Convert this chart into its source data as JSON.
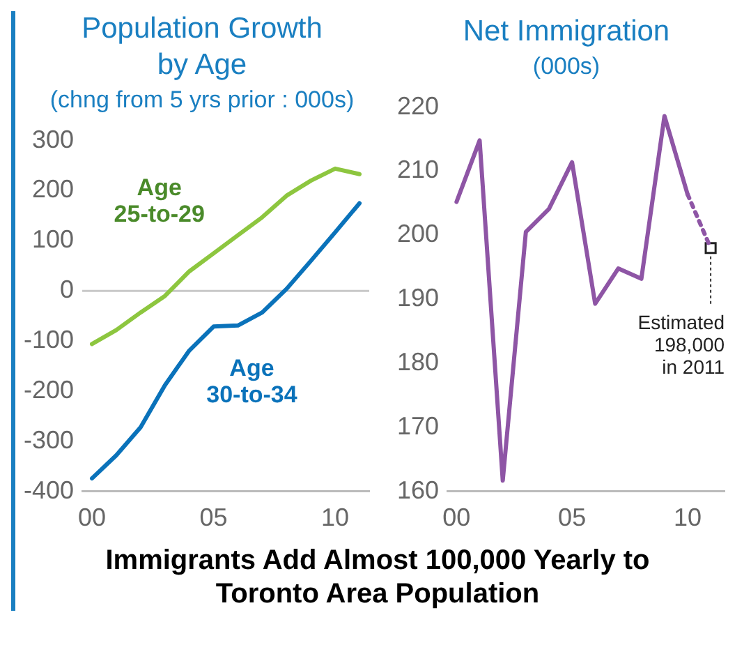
{
  "chart_data": [
    {
      "type": "line",
      "title": "Population Growth\nby Age",
      "subtitle": "(chng from 5 yrs prior : 000s)",
      "marker": "none",
      "x": [
        2000,
        2001,
        2002,
        2003,
        2004,
        2005,
        2006,
        2007,
        2008,
        2009,
        2010,
        2011
      ],
      "xlim": [
        1999.6,
        2011.4
      ],
      "xticks": [
        {
          "value": 2000,
          "label": "00"
        },
        {
          "value": 2005,
          "label": "05"
        },
        {
          "value": 2010,
          "label": "10"
        }
      ],
      "ylim": [
        -400,
        300
      ],
      "yticks": [
        -400,
        -300,
        -200,
        -100,
        0,
        100,
        200,
        300
      ],
      "ref_lines": [
        {
          "axis": "y",
          "value": 0,
          "color": "#c8c8c8"
        }
      ],
      "series": [
        {
          "name": "Age 25-to-29",
          "color": "#8dc63f",
          "values": [
            -106,
            -78,
            -43,
            -10,
            39,
            75,
            111,
            147,
            190,
            220,
            244,
            233
          ]
        },
        {
          "name": "Age 30-to-34",
          "color": "#0a72ba",
          "values": [
            -374,
            -328,
            -272,
            -188,
            -119,
            -71,
            -69,
            -43,
            4,
            60,
            117,
            175
          ]
        }
      ]
    },
    {
      "type": "line",
      "title": "Net Immigration",
      "subtitle": "(000s)",
      "marker": "none",
      "xlim": [
        1999.6,
        2011.6
      ],
      "xticks": [
        {
          "value": 2000,
          "label": "00"
        },
        {
          "value": 2005,
          "label": "05"
        },
        {
          "value": 2010,
          "label": "10"
        }
      ],
      "ylim": [
        160,
        220
      ],
      "yticks": [
        160,
        170,
        180,
        190,
        200,
        210,
        220
      ],
      "series": [
        {
          "color": "#8e55a5",
          "line_style": "solid",
          "x": [
            2000,
            2001,
            2002,
            2003,
            2004,
            2005,
            2006,
            2007,
            2008,
            2009,
            2010
          ],
          "values": [
            205.2,
            214.8,
            161.7,
            200.5,
            204.1,
            211.4,
            189.3,
            194.8,
            193.2,
            218.6,
            206.4
          ]
        },
        {
          "color": "#8e55a5",
          "line_style": "dotted",
          "x": [
            2010,
            2011
          ],
          "values": [
            206.4,
            198
          ]
        },
        {
          "type": "scatter",
          "marker": "square",
          "color": "#222222",
          "x": [
            2011
          ],
          "values": [
            198
          ]
        }
      ],
      "annotations": [
        {
          "text": "Estimated 198,000 in 2011",
          "x": 2011,
          "y": 198
        }
      ]
    },
    {
      "type": "other",
      "title": "Immigrants Add Almost 100,000 Yearly to Toronto Area Population"
    }
  ]
}
